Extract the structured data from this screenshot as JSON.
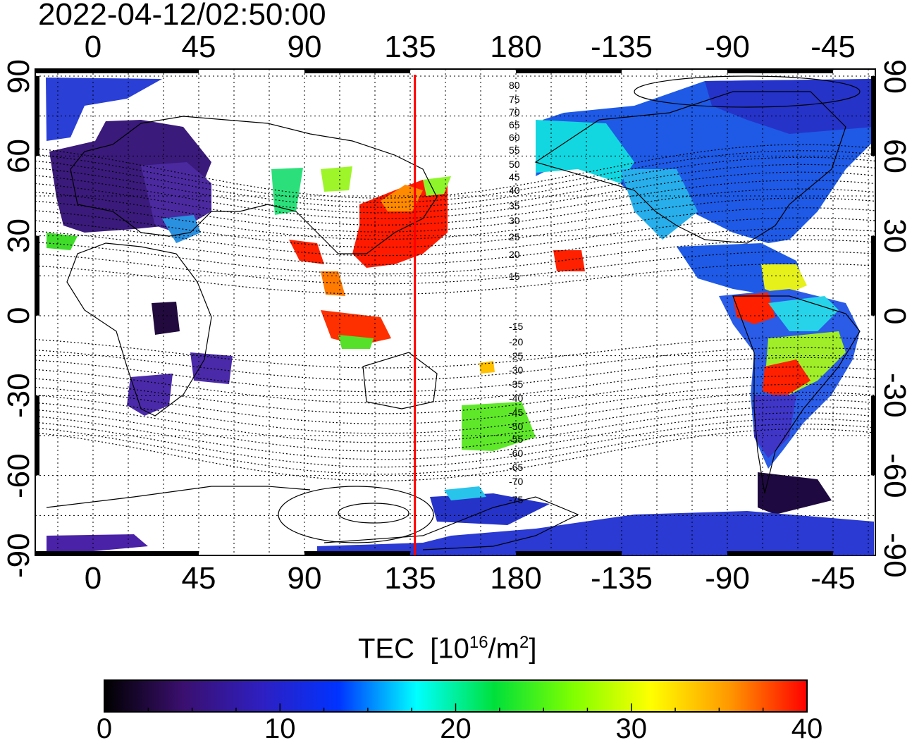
{
  "timestamp": "2022-04-12/02:50:00",
  "map": {
    "top_lon_labels": [
      "0",
      "45",
      "90",
      "135",
      "180",
      "-135",
      "-90",
      "-45"
    ],
    "bottom_lon_labels": [
      "0",
      "45",
      "90",
      "135",
      "180",
      "-135",
      "-90",
      "-45"
    ],
    "left_lat_labels": [
      "90",
      "60",
      "30",
      "0",
      "-30",
      "-60",
      "-90"
    ],
    "right_lat_labels": [
      "90",
      "60",
      "30",
      "0",
      "-30",
      "-60",
      "-90"
    ],
    "meridian_marker_lon": 137,
    "contour_labels_north": [
      "80",
      "75",
      "70",
      "65",
      "60",
      "55",
      "50",
      "45",
      "40",
      "35",
      "30",
      "25",
      "20",
      "15"
    ],
    "contour_labels_south": [
      "-15",
      "-20",
      "-25",
      "-30",
      "-35",
      "-40",
      "-45",
      "-50",
      "-55",
      "-60",
      "-65",
      "-70",
      "-75"
    ],
    "colors": {
      "marker": "#ff0000",
      "land_outline": "#000000"
    }
  },
  "colorbar": {
    "title": "TEC",
    "unit_prefix": "[10",
    "unit_exp": "16",
    "unit_mid": "/m",
    "unit_exp2": "2",
    "unit_suffix": "]",
    "tick_labels": [
      "0",
      "10",
      "20",
      "30",
      "40"
    ],
    "min": 0,
    "max": 40,
    "stops": [
      "#000000",
      "#3a0f6e",
      "#2f1fc0",
      "#0033ff",
      "#00ffff",
      "#00e03a",
      "#7fff00",
      "#ffff00",
      "#ff9900",
      "#ff0000"
    ]
  }
}
